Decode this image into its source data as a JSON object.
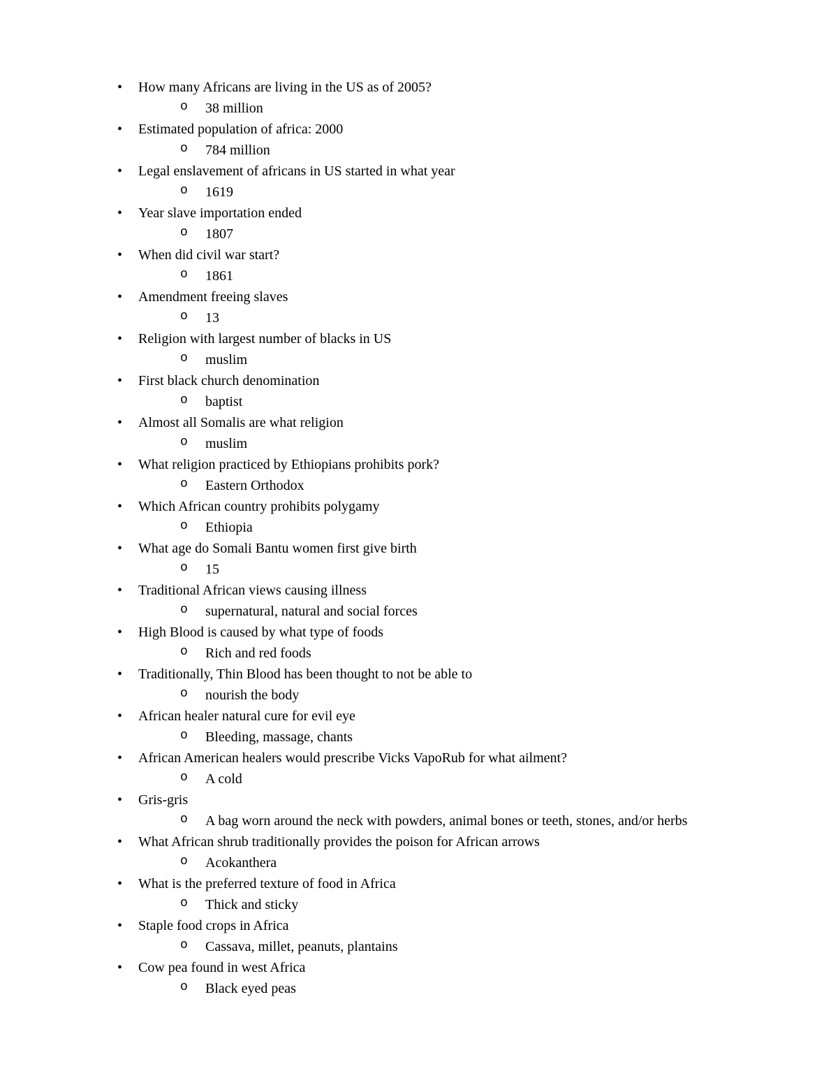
{
  "typography": {
    "font_family": "Times New Roman",
    "font_size_pt": 12,
    "line_height": 1.5,
    "text_color": "#000000",
    "background_color": "#ffffff"
  },
  "items": [
    {
      "q": "How many Africans are living in the US as of 2005?",
      "a": "38 million"
    },
    {
      "q": "Estimated population of africa: 2000",
      "a": "784 million"
    },
    {
      "q": "Legal enslavement of africans in US started in what year",
      "a": "1619"
    },
    {
      "q": "Year slave importation ended",
      "a": "1807"
    },
    {
      "q": "When did civil war start?",
      "a": "1861"
    },
    {
      "q": "Amendment freeing slaves",
      "a": "13"
    },
    {
      "q": "Religion with largest number of blacks in US",
      "a": "muslim"
    },
    {
      "q": "First black church denomination",
      "a": "baptist"
    },
    {
      "q": "Almost all Somalis are what religion",
      "a": "muslim"
    },
    {
      "q": "What religion practiced by Ethiopians prohibits pork?",
      "a": "Eastern Orthodox"
    },
    {
      "q": "Which African country prohibits polygamy",
      "a": "Ethiopia"
    },
    {
      "q": "What age do Somali Bantu women first give birth",
      "a": "15"
    },
    {
      "q": "Traditional African views causing illness",
      "a": "supernatural, natural and social forces"
    },
    {
      "q": "High Blood is caused by what type of foods",
      "a": "Rich and red foods"
    },
    {
      "q": "Traditionally, Thin Blood has been thought to not be able to",
      "a": "nourish the body"
    },
    {
      "q": "African healer natural cure for evil eye",
      "a": "Bleeding, massage, chants"
    },
    {
      "q": "African American healers would prescribe Vicks VapoRub for what ailment?",
      "a": "A cold"
    },
    {
      "q": "Gris-gris",
      "a": "A bag worn around the neck with powders, animal bones or teeth, stones, and/or herbs"
    },
    {
      "q": "What African shrub traditionally provides the poison for African arrows",
      "a": "Acokanthera"
    },
    {
      "q": "What is the preferred texture of food in Africa",
      "a": "Thick and sticky"
    },
    {
      "q": "Staple food crops in Africa",
      "a": "Cassava, millet, peanuts, plantains"
    },
    {
      "q": "Cow pea found in west Africa",
      "a": "Black eyed peas"
    }
  ]
}
